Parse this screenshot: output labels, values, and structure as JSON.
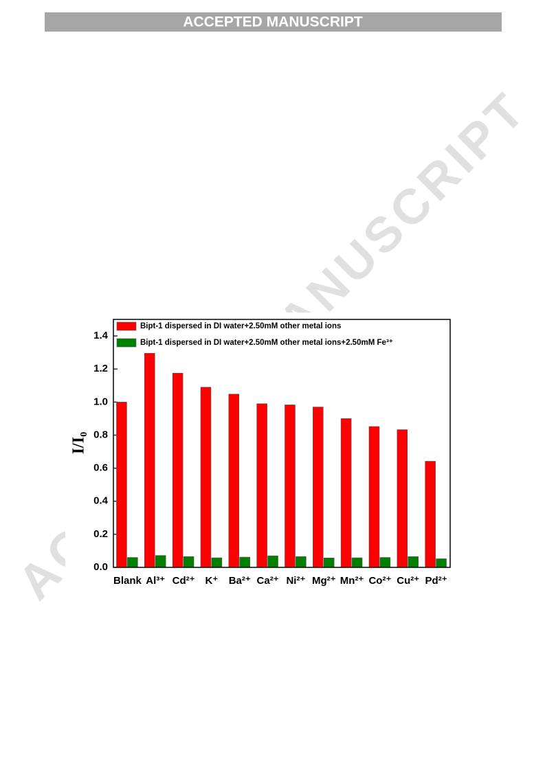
{
  "header": {
    "banner": "ACCEPTED MANUSCRIPT",
    "watermark": "ACCEPTED MANUSCRIPT"
  },
  "chart_data": {
    "type": "bar",
    "ylabel": "I/I₀",
    "categories": [
      "Blank",
      "Al³⁺",
      "Cd²⁺",
      "K⁺",
      "Ba²⁺",
      "Ca²⁺",
      "Ni²⁺",
      "Mg²⁺",
      "Mn²⁺",
      "Co²⁺",
      "Cu²⁺",
      "Pd²⁺"
    ],
    "series": [
      {
        "name": "Bipt-1 dispersed in DI water+2.50mM other metal ions",
        "color": "#ff0000",
        "values": [
          1.0,
          1.295,
          1.175,
          1.09,
          1.048,
          0.99,
          0.983,
          0.97,
          0.9,
          0.852,
          0.833,
          0.642
        ]
      },
      {
        "name": "Bipt-1 dispersed in DI water+2.50mM other metal ions+2.50mM Fe³⁺",
        "color": "#008000",
        "values": [
          0.06,
          0.072,
          0.065,
          0.058,
          0.062,
          0.07,
          0.065,
          0.057,
          0.058,
          0.06,
          0.065,
          0.052
        ]
      }
    ],
    "ylim": [
      0,
      1.5
    ],
    "yticks": [
      {
        "value": 0,
        "label": "0.0"
      },
      0.2,
      0.4,
      0.6,
      0.8,
      {
        "value": 1,
        "label": "1.0"
      },
      1.2,
      1.4
    ],
    "legend": "top-left"
  }
}
